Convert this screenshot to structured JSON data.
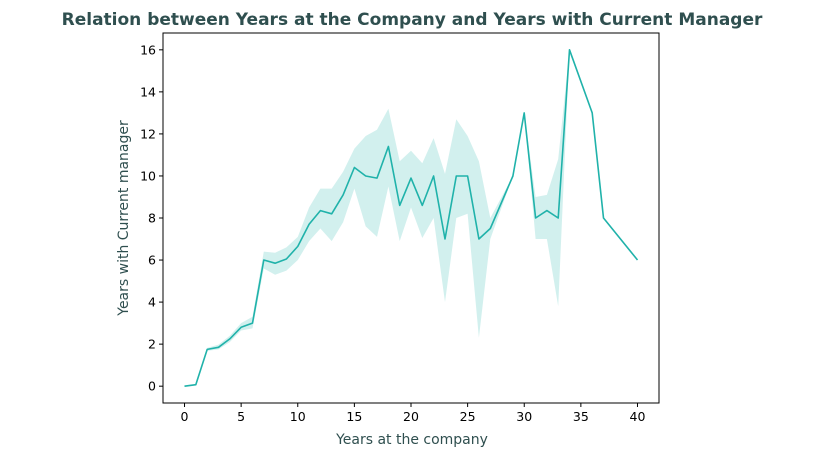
{
  "chart_data": {
    "type": "line",
    "title": "Relation between Years at the Company and Years with Current Manager",
    "xlabel": "Years at the company",
    "ylabel": "Years with Current manager",
    "xlim": [
      -1.9,
      41.9
    ],
    "ylim": [
      -0.8,
      16.8
    ],
    "xticks": [
      0,
      5,
      10,
      15,
      20,
      25,
      30,
      35,
      40
    ],
    "yticks": [
      0,
      2,
      4,
      6,
      8,
      10,
      12,
      14,
      16
    ],
    "grid": false,
    "colors": {
      "line": "#20b2aa",
      "band": "#20b2aa",
      "text": "#2f4f4f"
    },
    "series": [
      {
        "x": [
          0,
          1,
          2,
          3,
          4,
          5,
          6,
          7,
          8,
          9,
          10,
          11,
          12,
          13,
          14,
          15,
          16,
          17,
          18,
          19,
          20,
          21,
          22,
          23,
          24,
          25,
          26,
          27,
          29,
          30,
          31,
          32,
          33,
          34,
          36,
          37,
          40
        ],
        "y": [
          0.0,
          0.07,
          1.75,
          1.85,
          2.25,
          2.8,
          3.0,
          6.0,
          5.85,
          6.05,
          6.65,
          7.7,
          8.35,
          8.2,
          9.1,
          10.4,
          10.0,
          9.9,
          11.4,
          8.6,
          9.9,
          8.6,
          10.0,
          7.0,
          10.0,
          10.0,
          7.0,
          7.5,
          10.0,
          13.0,
          8.0,
          8.35,
          8.0,
          16.0,
          13.0,
          8.0,
          6.0
        ],
        "lower": [
          0.0,
          0.07,
          1.68,
          1.75,
          2.1,
          2.65,
          2.75,
          5.6,
          5.3,
          5.5,
          6.0,
          6.9,
          7.5,
          6.9,
          7.8,
          9.4,
          7.6,
          7.1,
          9.5,
          6.9,
          8.5,
          7.05,
          8.0,
          4.0,
          8.0,
          8.2,
          2.3,
          7.0,
          10.0,
          13.0,
          7.0,
          7.0,
          3.8,
          16.0,
          13.0,
          8.0,
          6.0
        ],
        "upper": [
          0.0,
          0.07,
          1.82,
          1.98,
          2.4,
          3.0,
          3.3,
          6.4,
          6.35,
          6.6,
          7.1,
          8.5,
          9.4,
          9.4,
          10.2,
          11.3,
          11.9,
          12.2,
          13.2,
          10.7,
          11.2,
          10.6,
          11.8,
          10.1,
          12.7,
          11.9,
          10.7,
          8.0,
          10.0,
          13.0,
          9.0,
          9.1,
          10.8,
          16.0,
          13.0,
          8.0,
          6.0
        ]
      }
    ]
  }
}
